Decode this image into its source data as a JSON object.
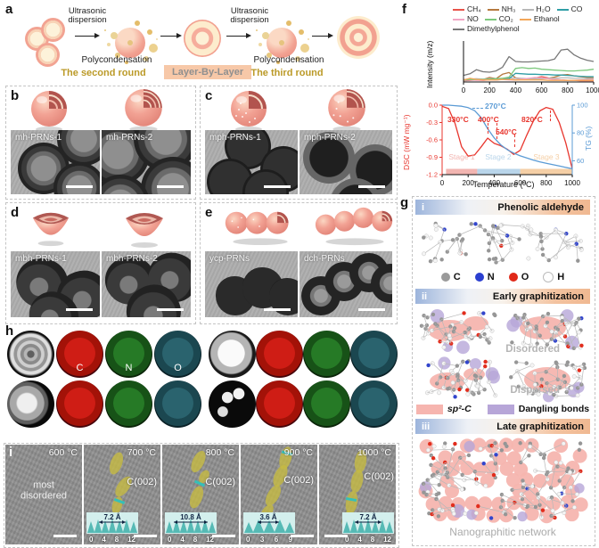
{
  "panels": {
    "a": {
      "label": "a",
      "ultrasonic": "Ultrasonic dispersion",
      "polycondensation": "Polycondensation",
      "round2": "The second round",
      "layer": "Layer-By-Layer",
      "round3": "The third round"
    },
    "b": {
      "label": "b",
      "images": [
        "mh-PRNs-1",
        "mh-PRNs-2"
      ]
    },
    "c": {
      "label": "c",
      "images": [
        "mph-PRNs-1",
        "mph-PRNs-2"
      ]
    },
    "d": {
      "label": "d",
      "images": [
        "mbh-PRNs-1",
        "mbh-PRNs-2"
      ]
    },
    "e": {
      "label": "e",
      "images": [
        "ycp-PRNs",
        "dch-PRNs"
      ]
    },
    "f": {
      "label": "f"
    },
    "g": {
      "label": "g",
      "sections": [
        {
          "num": "i",
          "title": "Phenolic aldehyde"
        },
        {
          "num": "ii",
          "title": "Early graphitization"
        },
        {
          "num": "iii",
          "title": "Late graphitization"
        }
      ],
      "atom_legend": [
        "C",
        "N",
        "O",
        "H"
      ],
      "disordered": "Disordered",
      "dispersed": "Dispersed",
      "sp2": "sp²-C",
      "dangling": "Dangling bonds",
      "network": "Nanographitic network",
      "colors": {
        "sp2_swatch": "#f6b5af",
        "dangling_swatch": "#b7a6d8"
      }
    },
    "h": {
      "label": "h",
      "elements": [
        "C",
        "N",
        "O"
      ]
    },
    "i": {
      "label": "i",
      "tiles": [
        {
          "temp": "600 °C",
          "note": "most disordered"
        },
        {
          "temp": "700 °C",
          "plane": "C(002)",
          "inset_value": "7.2 Å",
          "inset_ticks": [
            "0",
            "4",
            "8",
            "12"
          ]
        },
        {
          "temp": "800 °C",
          "plane": "C(002)",
          "inset_value": "10.8 Å",
          "inset_ticks": [
            "0",
            "4",
            "8",
            "12"
          ]
        },
        {
          "temp": "900 °C",
          "plane": "C(002)",
          "inset_value": "3.6 Å",
          "inset_ticks": [
            "0",
            "3",
            "6",
            "9"
          ]
        },
        {
          "temp": "1000 °C",
          "plane": "C(002)",
          "inset_value": "7.2 Å",
          "inset_ticks": [
            "0",
            "4",
            "8",
            "12"
          ]
        }
      ]
    }
  },
  "chart_data": [
    {
      "type": "line",
      "ylabel": "Intensity (m/z)",
      "xlim": [
        0,
        1000
      ],
      "xticks": [
        0,
        200,
        400,
        600,
        800,
        1000
      ],
      "ylim_left": [
        0,
        1
      ],
      "legend_position": "top",
      "x": [
        0,
        50,
        100,
        150,
        200,
        250,
        300,
        350,
        400,
        450,
        500,
        550,
        600,
        650,
        700,
        750,
        800,
        850,
        900,
        950,
        1000
      ],
      "series": [
        {
          "name": "CH₄",
          "color": "#e8534a",
          "values": [
            0.03,
            0.04,
            0.05,
            0.04,
            0.06,
            0.05,
            0.07,
            0.06,
            0.05,
            0.06,
            0.07,
            0.1,
            0.13,
            0.1,
            0.06,
            0.05,
            0.04,
            0.04,
            0.03,
            0.03,
            0.03
          ]
        },
        {
          "name": "NH₃",
          "color": "#b5793f",
          "values": [
            0.05,
            0.06,
            0.07,
            0.06,
            0.11,
            0.08,
            0.19,
            0.23,
            0.1,
            0.08,
            0.07,
            0.07,
            0.08,
            0.09,
            0.12,
            0.17,
            0.18,
            0.15,
            0.13,
            0.11,
            0.1
          ]
        },
        {
          "name": "H₂O",
          "color": "#b8b8b8",
          "values": [
            0.06,
            0.07,
            0.08,
            0.07,
            0.08,
            0.08,
            0.09,
            0.1,
            0.09,
            0.09,
            0.08,
            0.08,
            0.08,
            0.09,
            0.09,
            0.1,
            0.1,
            0.09,
            0.09,
            0.08,
            0.08
          ]
        },
        {
          "name": "CO",
          "color": "#2f9ea6",
          "values": [
            0.04,
            0.05,
            0.05,
            0.05,
            0.06,
            0.05,
            0.07,
            0.08,
            0.21,
            0.2,
            0.19,
            0.19,
            0.18,
            0.18,
            0.17,
            0.17,
            0.16,
            0.15,
            0.14,
            0.13,
            0.13
          ]
        },
        {
          "name": "NO",
          "color": "#f2a6c4",
          "values": [
            0.04,
            0.05,
            0.04,
            0.04,
            0.05,
            0.05,
            0.06,
            0.05,
            0.05,
            0.07,
            0.09,
            0.11,
            0.1,
            0.08,
            0.06,
            0.05,
            0.04,
            0.04,
            0.05,
            0.05,
            0.06
          ]
        },
        {
          "name": "CO₂",
          "color": "#7cc87c",
          "values": [
            0.05,
            0.06,
            0.06,
            0.06,
            0.07,
            0.08,
            0.09,
            0.12,
            0.33,
            0.35,
            0.33,
            0.34,
            0.31,
            0.3,
            0.29,
            0.28,
            0.27,
            0.27,
            0.28,
            0.29,
            0.31
          ]
        },
        {
          "name": "Ethanol",
          "color": "#f3a759",
          "values": [
            0.05,
            0.09,
            0.06,
            0.05,
            0.05,
            0.05,
            0.06,
            0.06,
            0.05,
            0.05,
            0.05,
            0.05,
            0.05,
            0.04,
            0.04,
            0.04,
            0.04,
            0.04,
            0.04,
            0.04,
            0.04
          ]
        },
        {
          "name": "Dimethylphenol",
          "color": "#787878",
          "values": [
            0.16,
            0.2,
            0.3,
            0.25,
            0.24,
            0.27,
            0.36,
            0.62,
            0.5,
            0.49,
            0.49,
            0.5,
            0.51,
            0.52,
            0.56,
            0.78,
            0.8,
            0.66,
            0.58,
            0.53,
            0.5
          ]
        }
      ]
    },
    {
      "type": "line",
      "xlabel": "Temperature (°C)",
      "ylabel_left": "DSC (mW mg⁻¹)",
      "ylabel_right": "TG (%)",
      "xlim": [
        0,
        1000
      ],
      "xticks": [
        0,
        200,
        400,
        600,
        800,
        1000
      ],
      "ylim_left": [
        -1.2,
        0.0
      ],
      "yticks_left": [
        0.0,
        -0.3,
        -0.6,
        -0.9,
        -1.2
      ],
      "ylim_right": [
        50,
        100
      ],
      "yticks_right": [
        100,
        80,
        60
      ],
      "x": [
        0,
        50,
        100,
        150,
        200,
        250,
        300,
        350,
        400,
        450,
        500,
        550,
        600,
        650,
        700,
        750,
        800,
        850,
        900,
        950,
        1000
      ],
      "series": [
        {
          "name": "DSC",
          "axis": "left",
          "color": "#e8362e",
          "values": [
            -0.02,
            -0.06,
            -0.32,
            -0.72,
            -0.88,
            -0.86,
            -0.72,
            -0.57,
            -0.66,
            -0.7,
            -0.76,
            -0.85,
            -0.78,
            -0.52,
            -0.28,
            -0.1,
            -0.04,
            -0.07,
            -0.3,
            -0.65,
            -1.1
          ]
        },
        {
          "name": "TG",
          "axis": "right",
          "color": "#5b9bd5",
          "values": [
            100,
            100,
            99.6,
            99.2,
            98.2,
            96.0,
            91.0,
            83.0,
            76.5,
            71.5,
            68.0,
            65.5,
            63.5,
            62.0,
            60.5,
            59.2,
            58.2,
            57.2,
            56.2,
            55.2,
            54.2
          ]
        }
      ],
      "annotations": [
        {
          "text": "270°C",
          "color": "#5b9bd5"
        },
        {
          "text": "330°C",
          "color": "#e8362e"
        },
        {
          "text": "400°C",
          "color": "#e8362e"
        },
        {
          "text": "540°C",
          "color": "#e8362e"
        },
        {
          "text": "820°C",
          "color": "#e8362e"
        }
      ],
      "stages": [
        {
          "label": "Stage 1",
          "color": "#f2b5b1",
          "span": [
            30,
            270
          ]
        },
        {
          "label": "Stage 2",
          "color": "#b9d5ea",
          "span": [
            270,
            600
          ]
        },
        {
          "label": "Stage 3",
          "color": "#f5cfa6",
          "span": [
            600,
            1000
          ]
        }
      ]
    }
  ]
}
